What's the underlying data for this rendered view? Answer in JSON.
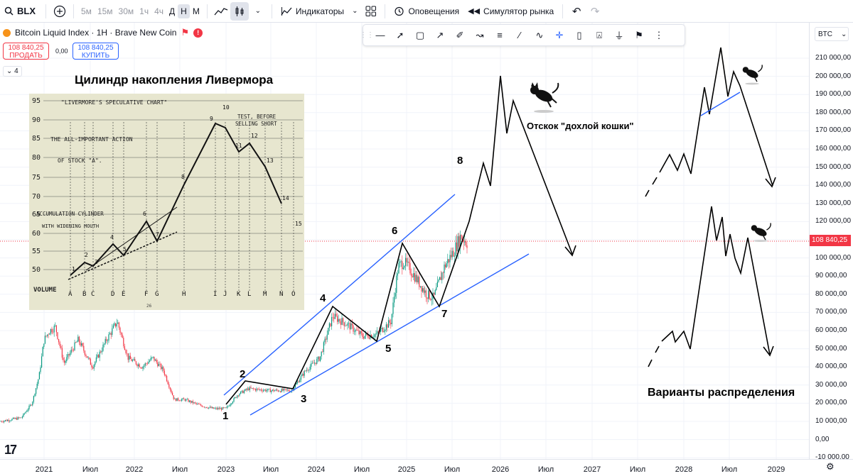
{
  "toolbar": {
    "symbol": "BLX",
    "timeframes": [
      "5м",
      "15м",
      "30м",
      "1ч",
      "4ч",
      "Д",
      "Н",
      "М"
    ],
    "active_timeframe": "Н",
    "indicators_label": "Индикаторы",
    "alerts_label": "Оповещения",
    "replay_label": "Симулятор рынка"
  },
  "legend": {
    "title": "Bitcoin Liquid Index · 1H · Brave New Coin",
    "sell_price": "108 840,25",
    "sell_label": "ПРОДАТЬ",
    "spread": "0,00",
    "buy_price": "108 840,25",
    "buy_label": "КУПИТЬ",
    "indicators_count": "4"
  },
  "currency": "BTC",
  "current_price": "108 840,25",
  "price_axis": [
    "210 000,00",
    "200 000,00",
    "190 000,00",
    "180 000,00",
    "170 000,00",
    "160 000,00",
    "150 000,00",
    "140 000,00",
    "130 000,00",
    "120 000,00",
    "110 000,00",
    "100 000,00",
    "90 000,00",
    "80 000,00",
    "70 000,00",
    "60 000,00",
    "50 000,00",
    "40 000,00",
    "30 000,00",
    "20 000,00",
    "10 000,00",
    "0,00",
    "-10 000,00"
  ],
  "time_axis": [
    "2021",
    "Июл",
    "2022",
    "Июл",
    "2023",
    "Июл",
    "2024",
    "Июл",
    "2025",
    "Июл",
    "2026",
    "Июл",
    "2027",
    "Июл",
    "2028",
    "Июл",
    "2029"
  ],
  "annotations": {
    "cylinder_title": "Цилиндр накопления Ливермора",
    "dead_cat": "Отскок \"дохлой кошки\"",
    "distribution": "Варианты распределения",
    "points": [
      "1",
      "2",
      "3",
      "4",
      "5",
      "6",
      "7",
      "8"
    ]
  },
  "livermore_chart": {
    "title": "\"LIVERMORE'S SPECULATIVE CHART\"",
    "line1": "THE ALL-IMPORTANT ACTION",
    "line2": "OF STOCK \"A\".",
    "cyl1": "ACCUMULATION CYLINDER",
    "cyl2": "WITH WIDENING MOUTH",
    "test": "TEST, BEFORE",
    "test2": "SELLING SHORT",
    "volume": "VOLUME",
    "page": "26",
    "yticks": [
      "95",
      "90",
      "85",
      "80",
      "75",
      "70",
      "65",
      "60",
      "55",
      "50"
    ],
    "xletters": [
      "A",
      "B",
      "C",
      "D",
      "E",
      "F",
      "G",
      "H",
      "I",
      "J",
      "K",
      "L",
      "M",
      "N",
      "O"
    ],
    "nums": [
      "1",
      "2",
      "3",
      "4",
      "5",
      "6",
      "7",
      "8",
      "9",
      "10",
      "11",
      "12",
      "13",
      "14",
      "15"
    ]
  },
  "colors": {
    "up": "#089981",
    "down": "#f23645",
    "trend": "#2962ff",
    "price": "#f23645"
  }
}
